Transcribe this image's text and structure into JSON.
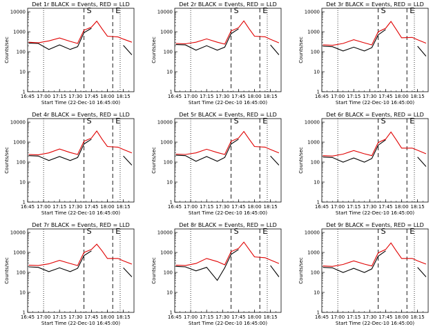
{
  "colors": {
    "events": "#000000",
    "lld": "#e00000",
    "axes": "#000000",
    "background": "#ffffff"
  },
  "shared": {
    "xlabel": "Start Time (22-Dec-10 16:45:00)",
    "ylabel": "Counts/sec",
    "xticks": [
      "16:45",
      "17:00",
      "17:15",
      "17:30",
      "17:45",
      "18:00",
      "18:15"
    ],
    "yticks": [
      "1",
      "10",
      "100",
      "1000",
      "10000"
    ],
    "flare_markers": [
      "S",
      "E"
    ]
  },
  "chart_data": [
    {
      "type": "line",
      "title": "Det 1r BLACK = Events, RED = LLD",
      "xlim": [
        "16:45",
        "18:25"
      ],
      "ylim": [
        1,
        15000
      ],
      "yscale": "log",
      "x": [
        "16:46",
        "16:55",
        "17:05",
        "17:15",
        "17:25",
        "17:32",
        "17:38",
        "17:45",
        "17:50",
        "17:55",
        "18:00",
        "18:10",
        "18:15",
        "18:23"
      ],
      "series": [
        {
          "name": "Events",
          "values": [
            270,
            260,
            130,
            220,
            130,
            180,
            900,
            1500,
            null,
            null,
            null,
            null,
            210,
            70
          ]
        },
        {
          "name": "LLD",
          "values": [
            300,
            280,
            350,
            490,
            330,
            260,
            1200,
            1700,
            3400,
            1400,
            600,
            550,
            430,
            300
          ]
        }
      ],
      "vlines_dotted": [
        "17:00",
        "18:12"
      ],
      "vlines_dashed": [
        "17:38",
        "18:05"
      ]
    },
    {
      "type": "line",
      "title": "Det 2r BLACK = Events, RED = LLD",
      "xlim": [
        "16:45",
        "18:25"
      ],
      "ylim": [
        1,
        15000
      ],
      "yscale": "log",
      "x": [
        "16:46",
        "16:55",
        "17:05",
        "17:15",
        "17:25",
        "17:32",
        "17:38",
        "17:45",
        "17:50",
        "17:55",
        "18:00",
        "18:10",
        "18:15",
        "18:23"
      ],
      "series": [
        {
          "name": "Events",
          "values": [
            230,
            220,
            120,
            200,
            120,
            170,
            800,
            1400,
            null,
            null,
            null,
            null,
            220,
            70
          ]
        },
        {
          "name": "LLD",
          "values": [
            260,
            250,
            300,
            440,
            300,
            240,
            1100,
            1600,
            3500,
            1400,
            600,
            560,
            420,
            280
          ]
        }
      ],
      "vlines_dotted": [
        "17:00",
        "18:12"
      ],
      "vlines_dashed": [
        "17:38",
        "18:05"
      ]
    },
    {
      "type": "line",
      "title": "Det 3r BLACK = Events, RED = LLD",
      "xlim": [
        "16:45",
        "18:25"
      ],
      "ylim": [
        1,
        15000
      ],
      "yscale": "log",
      "x": [
        "16:46",
        "16:55",
        "17:05",
        "17:15",
        "17:25",
        "17:32",
        "17:38",
        "17:45",
        "17:50",
        "17:55",
        "18:00",
        "18:10",
        "18:15",
        "18:23"
      ],
      "series": [
        {
          "name": "Events",
          "values": [
            190,
            180,
            110,
            170,
            110,
            160,
            700,
            1300,
            null,
            null,
            null,
            null,
            190,
            60
          ]
        },
        {
          "name": "LLD",
          "values": [
            220,
            210,
            260,
            400,
            280,
            220,
            1000,
            1500,
            3300,
            1300,
            500,
            520,
            400,
            270
          ]
        }
      ],
      "vlines_dotted": [
        "17:00",
        "18:12"
      ],
      "vlines_dashed": [
        "17:38",
        "18:05"
      ]
    },
    {
      "type": "line",
      "title": "Det 4r BLACK = Events, RED = LLD",
      "xlim": [
        "16:45",
        "18:25"
      ],
      "ylim": [
        1,
        15000
      ],
      "yscale": "log",
      "x": [
        "16:46",
        "16:55",
        "17:05",
        "17:15",
        "17:25",
        "17:32",
        "17:38",
        "17:45",
        "17:50",
        "17:55",
        "18:00",
        "18:10",
        "18:15",
        "18:23"
      ],
      "series": [
        {
          "name": "Events",
          "values": [
            210,
            200,
            120,
            190,
            120,
            170,
            800,
            1400,
            null,
            null,
            null,
            null,
            200,
            70
          ]
        },
        {
          "name": "LLD",
          "values": [
            240,
            230,
            290,
            450,
            300,
            240,
            1100,
            1600,
            3600,
            1400,
            600,
            560,
            430,
            290
          ]
        }
      ],
      "vlines_dotted": [
        "17:00",
        "18:12"
      ],
      "vlines_dashed": [
        "17:38",
        "18:05"
      ]
    },
    {
      "type": "line",
      "title": "Det 5r BLACK = Events, RED = LLD",
      "xlim": [
        "16:45",
        "18:25"
      ],
      "ylim": [
        1,
        15000
      ],
      "yscale": "log",
      "x": [
        "16:46",
        "16:55",
        "17:05",
        "17:15",
        "17:25",
        "17:32",
        "17:38",
        "17:45",
        "17:50",
        "17:55",
        "18:00",
        "18:10",
        "18:15",
        "18:23"
      ],
      "series": [
        {
          "name": "Events",
          "values": [
            220,
            210,
            110,
            190,
            110,
            170,
            800,
            1400,
            null,
            null,
            null,
            null,
            200,
            70
          ]
        },
        {
          "name": "LLD",
          "values": [
            250,
            240,
            290,
            440,
            300,
            240,
            1100,
            1600,
            3400,
            1400,
            600,
            560,
            430,
            290
          ]
        }
      ],
      "vlines_dotted": [
        "17:00",
        "18:12"
      ],
      "vlines_dashed": [
        "17:38",
        "18:05"
      ]
    },
    {
      "type": "line",
      "title": "Det 6r BLACK = Events, RED = LLD",
      "xlim": [
        "16:45",
        "18:25"
      ],
      "ylim": [
        1,
        15000
      ],
      "yscale": "log",
      "x": [
        "16:46",
        "16:55",
        "17:05",
        "17:15",
        "17:25",
        "17:32",
        "17:38",
        "17:45",
        "17:50",
        "17:55",
        "18:00",
        "18:10",
        "18:15",
        "18:23"
      ],
      "series": [
        {
          "name": "Events",
          "values": [
            180,
            170,
            100,
            160,
            100,
            150,
            700,
            1300,
            null,
            null,
            null,
            null,
            180,
            60
          ]
        },
        {
          "name": "LLD",
          "values": [
            210,
            200,
            250,
            380,
            260,
            210,
            950,
            1400,
            3200,
            1300,
            500,
            500,
            390,
            260
          ]
        }
      ],
      "vlines_dotted": [
        "17:00",
        "18:12"
      ],
      "vlines_dashed": [
        "17:38",
        "18:05"
      ]
    },
    {
      "type": "line",
      "title": "Det 7r BLACK = Events, RED = LLD",
      "xlim": [
        "16:45",
        "18:25"
      ],
      "ylim": [
        1,
        15000
      ],
      "yscale": "log",
      "x": [
        "16:46",
        "16:55",
        "17:05",
        "17:15",
        "17:25",
        "17:32",
        "17:38",
        "17:45",
        "17:50",
        "17:55",
        "18:00",
        "18:10",
        "18:15",
        "18:23"
      ],
      "series": [
        {
          "name": "Events",
          "values": [
            190,
            180,
            110,
            170,
            110,
            160,
            700,
            1200,
            null,
            null,
            null,
            null,
            170,
            60
          ]
        },
        {
          "name": "LLD",
          "values": [
            230,
            220,
            270,
            400,
            280,
            220,
            1000,
            1400,
            2600,
            1200,
            500,
            500,
            380,
            260
          ]
        }
      ],
      "vlines_dotted": [
        "17:00",
        "18:12"
      ],
      "vlines_dashed": [
        "17:38",
        "18:05"
      ]
    },
    {
      "type": "line",
      "title": "Det 8r BLACK = Events, RED = LLD",
      "xlim": [
        "16:45",
        "18:25"
      ],
      "ylim": [
        1,
        15000
      ],
      "yscale": "log",
      "x": [
        "16:46",
        "16:55",
        "17:05",
        "17:15",
        "17:25",
        "17:32",
        "17:38",
        "17:45",
        "17:50",
        "17:55",
        "18:00",
        "18:10",
        "18:15",
        "18:23"
      ],
      "series": [
        {
          "name": "Events",
          "values": [
            200,
            190,
            120,
            180,
            40,
            170,
            800,
            1400,
            null,
            null,
            null,
            null,
            220,
            60
          ]
        },
        {
          "name": "LLD",
          "values": [
            230,
            220,
            280,
            500,
            350,
            240,
            1100,
            1600,
            3300,
            1400,
            600,
            540,
            420,
            280
          ]
        }
      ],
      "vlines_dotted": [
        "17:00",
        "18:12"
      ],
      "vlines_dashed": [
        "17:38",
        "18:05"
      ]
    },
    {
      "type": "line",
      "title": "Det 9r BLACK = Events, RED = LLD",
      "xlim": [
        "16:45",
        "18:25"
      ],
      "ylim": [
        1,
        15000
      ],
      "yscale": "log",
      "x": [
        "16:46",
        "16:55",
        "17:05",
        "17:15",
        "17:25",
        "17:32",
        "17:38",
        "17:45",
        "17:50",
        "17:55",
        "18:00",
        "18:10",
        "18:15",
        "18:23"
      ],
      "series": [
        {
          "name": "Events",
          "values": [
            180,
            170,
            100,
            160,
            100,
            150,
            650,
            1200,
            null,
            null,
            null,
            null,
            180,
            60
          ]
        },
        {
          "name": "LLD",
          "values": [
            210,
            200,
            250,
            380,
            260,
            210,
            950,
            1400,
            3000,
            1200,
            500,
            500,
            380,
            260
          ]
        }
      ],
      "vlines_dotted": [
        "17:00",
        "18:12"
      ],
      "vlines_dashed": [
        "17:38",
        "18:05"
      ]
    }
  ]
}
